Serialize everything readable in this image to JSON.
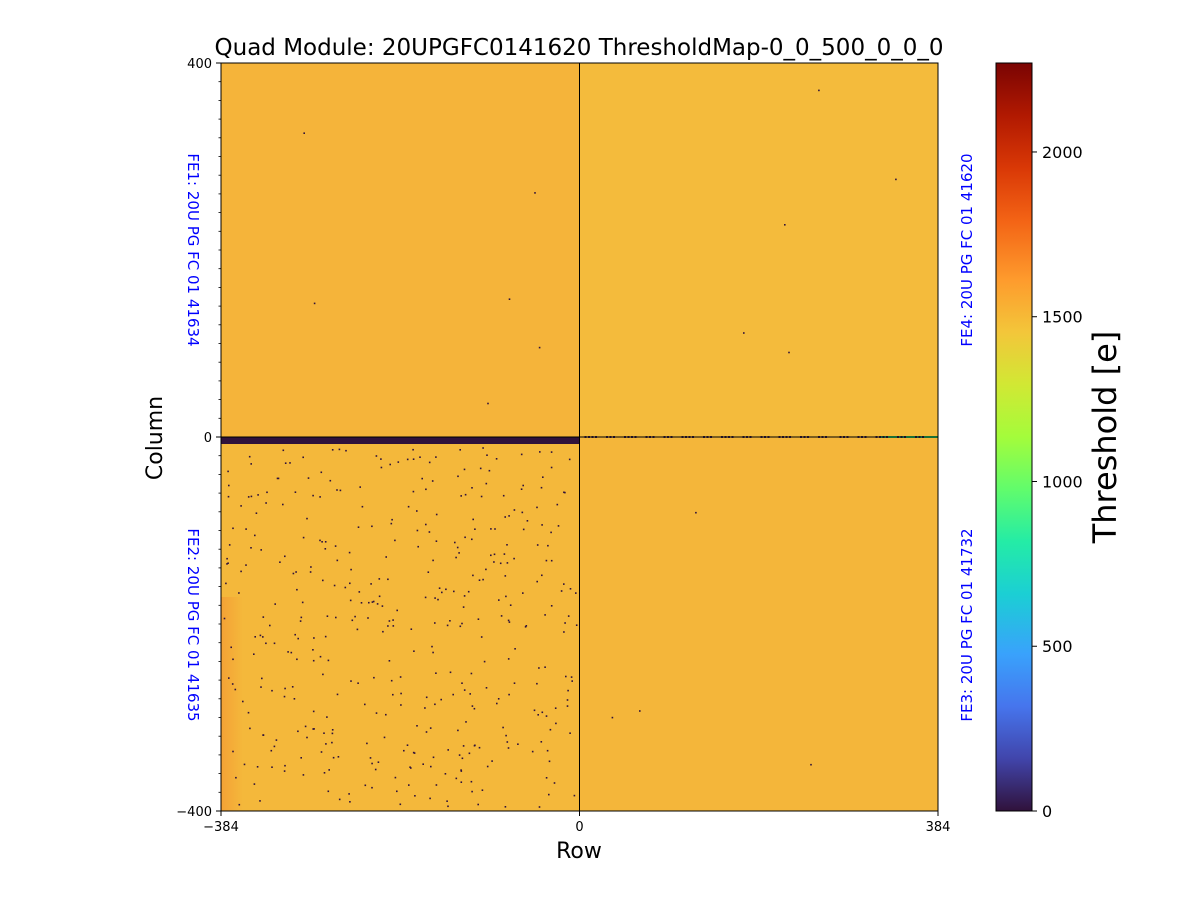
{
  "chart_data": {
    "type": "heatmap",
    "title": "Quad Module: 20UPGFC0141620 ThresholdMap-0_0_500_0_0_0",
    "xlabel": "Row",
    "ylabel": "Column",
    "xlim": [
      -384,
      384
    ],
    "ylim": [
      -400,
      400
    ],
    "x_ticks": [
      "−384",
      "0",
      "384"
    ],
    "y_ticks": [
      "400",
      "0",
      "−400"
    ],
    "x_tick_values": [
      -384,
      0,
      384
    ],
    "y_tick_values": [
      400,
      0,
      -400
    ],
    "grid": false,
    "colorbar": {
      "label": "Threshold [e]",
      "range": [
        0,
        2270
      ],
      "ticks": [
        "0",
        "500",
        "1000",
        "1500",
        "2000"
      ],
      "tick_values": [
        0,
        500,
        1000,
        1500,
        2000
      ],
      "colormap": "turbo"
    },
    "chips": [
      {
        "label": "FE1: 20U PG FC 01 41634",
        "quadrant": "top-left",
        "threshold_approx": 1520,
        "color": "#f5b43a"
      },
      {
        "label": "FE4: 20U PG FC 01 41620",
        "quadrant": "top-right",
        "threshold_approx": 1500,
        "color": "#f4bb3c"
      },
      {
        "label": "FE2: 20U PG FC 01 41635",
        "quadrant": "bottom-left",
        "threshold_approx": 1490,
        "color": "#f4b83b",
        "has_dead_pixels": true,
        "dead_row_at_top": true
      },
      {
        "label": "FE3: 20U PG FC 01 41732",
        "quadrant": "bottom-right",
        "threshold_approx": 1510,
        "color": "#f4b63a"
      }
    ]
  },
  "colors": {
    "fe_label": "#0000ff",
    "dead_pixel": "#30123b",
    "edge_row_hot": "#35e06a"
  }
}
